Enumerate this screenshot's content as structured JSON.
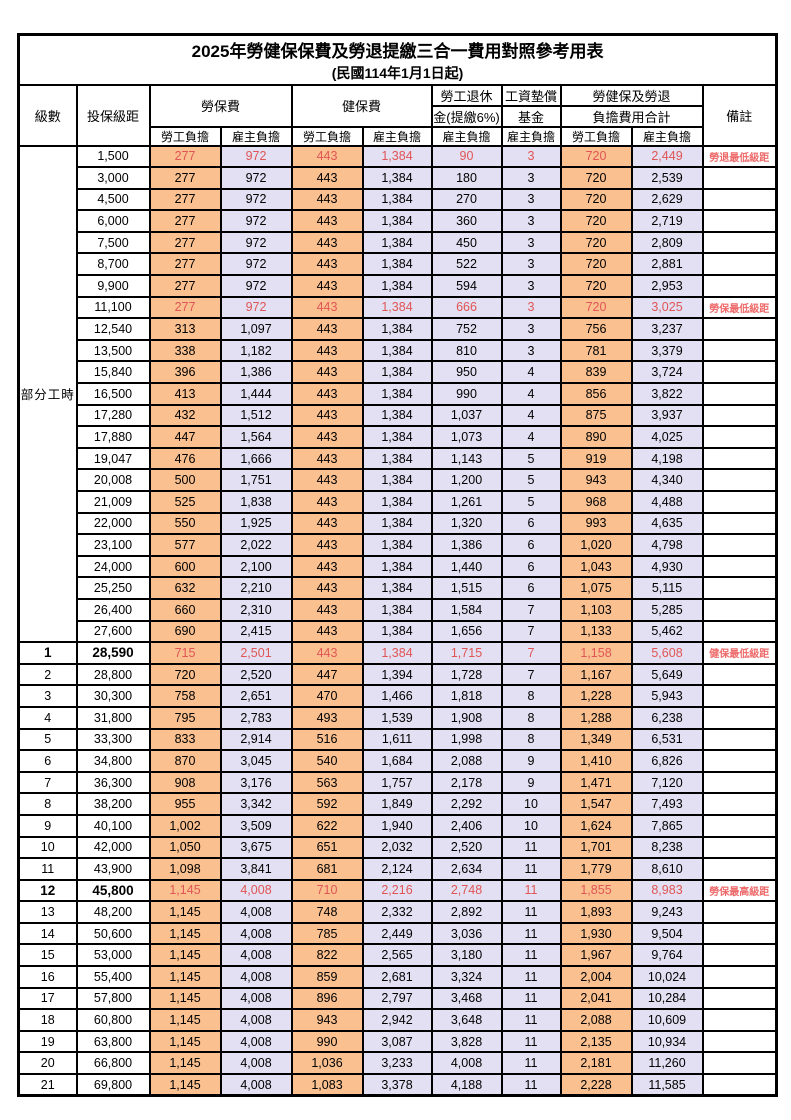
{
  "title": "2025年勞健保保費及勞退提繳三合一費用對照參考用表",
  "subtitle": "(民國114年1月1日起)",
  "colors": {
    "employee_bg": "#fac090",
    "employer_bg": "#e2e0f2",
    "highlight_text": "#e05555",
    "remark_text": "#ee6a6a",
    "border": "#000000"
  },
  "header": {
    "level": "級數",
    "bracket": "投保級距",
    "labor_insurance": "勞保費",
    "health_insurance": "健保費",
    "pension_line1": "勞工退休",
    "pension_line2": "金(提繳6%)",
    "wage_fund_line1": "工資墊償",
    "wage_fund_line2": "基金",
    "total_line1": "勞健保及勞退",
    "total_line2": "負擔費用合計",
    "remark": "備註",
    "employee": "勞工負擔",
    "employer": "雇主負擔"
  },
  "table": {
    "part_time_label": "部分工時",
    "part_time_rowspan": 23,
    "column_kinds": [
      "emp",
      "er",
      "emp",
      "er",
      "er",
      "er",
      "emp",
      "er"
    ],
    "rows": [
      {
        "level": "",
        "bracket": "1,500",
        "values": [
          "277",
          "972",
          "443",
          "1,384",
          "90",
          "3",
          "720",
          "2,449"
        ],
        "remark": "勞退最低級距",
        "highlight": true,
        "emphasis": false
      },
      {
        "level": "",
        "bracket": "3,000",
        "values": [
          "277",
          "972",
          "443",
          "1,384",
          "180",
          "3",
          "720",
          "2,539"
        ],
        "remark": "",
        "highlight": false,
        "emphasis": false
      },
      {
        "level": "",
        "bracket": "4,500",
        "values": [
          "277",
          "972",
          "443",
          "1,384",
          "270",
          "3",
          "720",
          "2,629"
        ],
        "remark": "",
        "highlight": false,
        "emphasis": false
      },
      {
        "level": "",
        "bracket": "6,000",
        "values": [
          "277",
          "972",
          "443",
          "1,384",
          "360",
          "3",
          "720",
          "2,719"
        ],
        "remark": "",
        "highlight": false,
        "emphasis": false
      },
      {
        "level": "",
        "bracket": "7,500",
        "values": [
          "277",
          "972",
          "443",
          "1,384",
          "450",
          "3",
          "720",
          "2,809"
        ],
        "remark": "",
        "highlight": false,
        "emphasis": false
      },
      {
        "level": "",
        "bracket": "8,700",
        "values": [
          "277",
          "972",
          "443",
          "1,384",
          "522",
          "3",
          "720",
          "2,881"
        ],
        "remark": "",
        "highlight": false,
        "emphasis": false
      },
      {
        "level": "",
        "bracket": "9,900",
        "values": [
          "277",
          "972",
          "443",
          "1,384",
          "594",
          "3",
          "720",
          "2,953"
        ],
        "remark": "",
        "highlight": false,
        "emphasis": false
      },
      {
        "level": "",
        "bracket": "11,100",
        "values": [
          "277",
          "972",
          "443",
          "1,384",
          "666",
          "3",
          "720",
          "3,025"
        ],
        "remark": "勞保最低級距",
        "highlight": true,
        "emphasis": false
      },
      {
        "level": "",
        "bracket": "12,540",
        "values": [
          "313",
          "1,097",
          "443",
          "1,384",
          "752",
          "3",
          "756",
          "3,237"
        ],
        "remark": "",
        "highlight": false,
        "emphasis": false
      },
      {
        "level": "",
        "bracket": "13,500",
        "values": [
          "338",
          "1,182",
          "443",
          "1,384",
          "810",
          "3",
          "781",
          "3,379"
        ],
        "remark": "",
        "highlight": false,
        "emphasis": false
      },
      {
        "level": "",
        "bracket": "15,840",
        "values": [
          "396",
          "1,386",
          "443",
          "1,384",
          "950",
          "4",
          "839",
          "3,724"
        ],
        "remark": "",
        "highlight": false,
        "emphasis": false
      },
      {
        "level": "",
        "bracket": "16,500",
        "values": [
          "413",
          "1,444",
          "443",
          "1,384",
          "990",
          "4",
          "856",
          "3,822"
        ],
        "remark": "",
        "highlight": false,
        "emphasis": false
      },
      {
        "level": "",
        "bracket": "17,280",
        "values": [
          "432",
          "1,512",
          "443",
          "1,384",
          "1,037",
          "4",
          "875",
          "3,937"
        ],
        "remark": "",
        "highlight": false,
        "emphasis": false
      },
      {
        "level": "",
        "bracket": "17,880",
        "values": [
          "447",
          "1,564",
          "443",
          "1,384",
          "1,073",
          "4",
          "890",
          "4,025"
        ],
        "remark": "",
        "highlight": false,
        "emphasis": false
      },
      {
        "level": "",
        "bracket": "19,047",
        "values": [
          "476",
          "1,666",
          "443",
          "1,384",
          "1,143",
          "5",
          "919",
          "4,198"
        ],
        "remark": "",
        "highlight": false,
        "emphasis": false
      },
      {
        "level": "",
        "bracket": "20,008",
        "values": [
          "500",
          "1,751",
          "443",
          "1,384",
          "1,200",
          "5",
          "943",
          "4,340"
        ],
        "remark": "",
        "highlight": false,
        "emphasis": false
      },
      {
        "level": "",
        "bracket": "21,009",
        "values": [
          "525",
          "1,838",
          "443",
          "1,384",
          "1,261",
          "5",
          "968",
          "4,488"
        ],
        "remark": "",
        "highlight": false,
        "emphasis": false
      },
      {
        "level": "",
        "bracket": "22,000",
        "values": [
          "550",
          "1,925",
          "443",
          "1,384",
          "1,320",
          "6",
          "993",
          "4,635"
        ],
        "remark": "",
        "highlight": false,
        "emphasis": false
      },
      {
        "level": "",
        "bracket": "23,100",
        "values": [
          "577",
          "2,022",
          "443",
          "1,384",
          "1,386",
          "6",
          "1,020",
          "4,798"
        ],
        "remark": "",
        "highlight": false,
        "emphasis": false
      },
      {
        "level": "",
        "bracket": "24,000",
        "values": [
          "600",
          "2,100",
          "443",
          "1,384",
          "1,440",
          "6",
          "1,043",
          "4,930"
        ],
        "remark": "",
        "highlight": false,
        "emphasis": false
      },
      {
        "level": "",
        "bracket": "25,250",
        "values": [
          "632",
          "2,210",
          "443",
          "1,384",
          "1,515",
          "6",
          "1,075",
          "5,115"
        ],
        "remark": "",
        "highlight": false,
        "emphasis": false
      },
      {
        "level": "",
        "bracket": "26,400",
        "values": [
          "660",
          "2,310",
          "443",
          "1,384",
          "1,584",
          "7",
          "1,103",
          "5,285"
        ],
        "remark": "",
        "highlight": false,
        "emphasis": false
      },
      {
        "level": "",
        "bracket": "27,600",
        "values": [
          "690",
          "2,415",
          "443",
          "1,384",
          "1,656",
          "7",
          "1,133",
          "5,462"
        ],
        "remark": "",
        "highlight": false,
        "emphasis": false
      },
      {
        "level": "1",
        "bracket": "28,590",
        "values": [
          "715",
          "2,501",
          "443",
          "1,384",
          "1,715",
          "7",
          "1,158",
          "5,608"
        ],
        "remark": "健保最低級距",
        "highlight": true,
        "emphasis": true
      },
      {
        "level": "2",
        "bracket": "28,800",
        "values": [
          "720",
          "2,520",
          "447",
          "1,394",
          "1,728",
          "7",
          "1,167",
          "5,649"
        ],
        "remark": "",
        "highlight": false,
        "emphasis": false
      },
      {
        "level": "3",
        "bracket": "30,300",
        "values": [
          "758",
          "2,651",
          "470",
          "1,466",
          "1,818",
          "8",
          "1,228",
          "5,943"
        ],
        "remark": "",
        "highlight": false,
        "emphasis": false
      },
      {
        "level": "4",
        "bracket": "31,800",
        "values": [
          "795",
          "2,783",
          "493",
          "1,539",
          "1,908",
          "8",
          "1,288",
          "6,238"
        ],
        "remark": "",
        "highlight": false,
        "emphasis": false
      },
      {
        "level": "5",
        "bracket": "33,300",
        "values": [
          "833",
          "2,914",
          "516",
          "1,611",
          "1,998",
          "8",
          "1,349",
          "6,531"
        ],
        "remark": "",
        "highlight": false,
        "emphasis": false
      },
      {
        "level": "6",
        "bracket": "34,800",
        "values": [
          "870",
          "3,045",
          "540",
          "1,684",
          "2,088",
          "9",
          "1,410",
          "6,826"
        ],
        "remark": "",
        "highlight": false,
        "emphasis": false
      },
      {
        "level": "7",
        "bracket": "36,300",
        "values": [
          "908",
          "3,176",
          "563",
          "1,757",
          "2,178",
          "9",
          "1,471",
          "7,120"
        ],
        "remark": "",
        "highlight": false,
        "emphasis": false
      },
      {
        "level": "8",
        "bracket": "38,200",
        "values": [
          "955",
          "3,342",
          "592",
          "1,849",
          "2,292",
          "10",
          "1,547",
          "7,493"
        ],
        "remark": "",
        "highlight": false,
        "emphasis": false
      },
      {
        "level": "9",
        "bracket": "40,100",
        "values": [
          "1,002",
          "3,509",
          "622",
          "1,940",
          "2,406",
          "10",
          "1,624",
          "7,865"
        ],
        "remark": "",
        "highlight": false,
        "emphasis": false
      },
      {
        "level": "10",
        "bracket": "42,000",
        "values": [
          "1,050",
          "3,675",
          "651",
          "2,032",
          "2,520",
          "11",
          "1,701",
          "8,238"
        ],
        "remark": "",
        "highlight": false,
        "emphasis": false
      },
      {
        "level": "11",
        "bracket": "43,900",
        "values": [
          "1,098",
          "3,841",
          "681",
          "2,124",
          "2,634",
          "11",
          "1,779",
          "8,610"
        ],
        "remark": "",
        "highlight": false,
        "emphasis": false
      },
      {
        "level": "12",
        "bracket": "45,800",
        "values": [
          "1,145",
          "4,008",
          "710",
          "2,216",
          "2,748",
          "11",
          "1,855",
          "8,983"
        ],
        "remark": "勞保最高級距",
        "highlight": true,
        "emphasis": true
      },
      {
        "level": "13",
        "bracket": "48,200",
        "values": [
          "1,145",
          "4,008",
          "748",
          "2,332",
          "2,892",
          "11",
          "1,893",
          "9,243"
        ],
        "remark": "",
        "highlight": false,
        "emphasis": false
      },
      {
        "level": "14",
        "bracket": "50,600",
        "values": [
          "1,145",
          "4,008",
          "785",
          "2,449",
          "3,036",
          "11",
          "1,930",
          "9,504"
        ],
        "remark": "",
        "highlight": false,
        "emphasis": false
      },
      {
        "level": "15",
        "bracket": "53,000",
        "values": [
          "1,145",
          "4,008",
          "822",
          "2,565",
          "3,180",
          "11",
          "1,967",
          "9,764"
        ],
        "remark": "",
        "highlight": false,
        "emphasis": false
      },
      {
        "level": "16",
        "bracket": "55,400",
        "values": [
          "1,145",
          "4,008",
          "859",
          "2,681",
          "3,324",
          "11",
          "2,004",
          "10,024"
        ],
        "remark": "",
        "highlight": false,
        "emphasis": false
      },
      {
        "level": "17",
        "bracket": "57,800",
        "values": [
          "1,145",
          "4,008",
          "896",
          "2,797",
          "3,468",
          "11",
          "2,041",
          "10,284"
        ],
        "remark": "",
        "highlight": false,
        "emphasis": false
      },
      {
        "level": "18",
        "bracket": "60,800",
        "values": [
          "1,145",
          "4,008",
          "943",
          "2,942",
          "3,648",
          "11",
          "2,088",
          "10,609"
        ],
        "remark": "",
        "highlight": false,
        "emphasis": false
      },
      {
        "level": "19",
        "bracket": "63,800",
        "values": [
          "1,145",
          "4,008",
          "990",
          "3,087",
          "3,828",
          "11",
          "2,135",
          "10,934"
        ],
        "remark": "",
        "highlight": false,
        "emphasis": false
      },
      {
        "level": "20",
        "bracket": "66,800",
        "values": [
          "1,145",
          "4,008",
          "1,036",
          "3,233",
          "4,008",
          "11",
          "2,181",
          "11,260"
        ],
        "remark": "",
        "highlight": false,
        "emphasis": false
      },
      {
        "level": "21",
        "bracket": "69,800",
        "values": [
          "1,145",
          "4,008",
          "1,083",
          "3,378",
          "4,188",
          "11",
          "2,228",
          "11,585"
        ],
        "remark": "",
        "highlight": false,
        "emphasis": false
      }
    ]
  }
}
